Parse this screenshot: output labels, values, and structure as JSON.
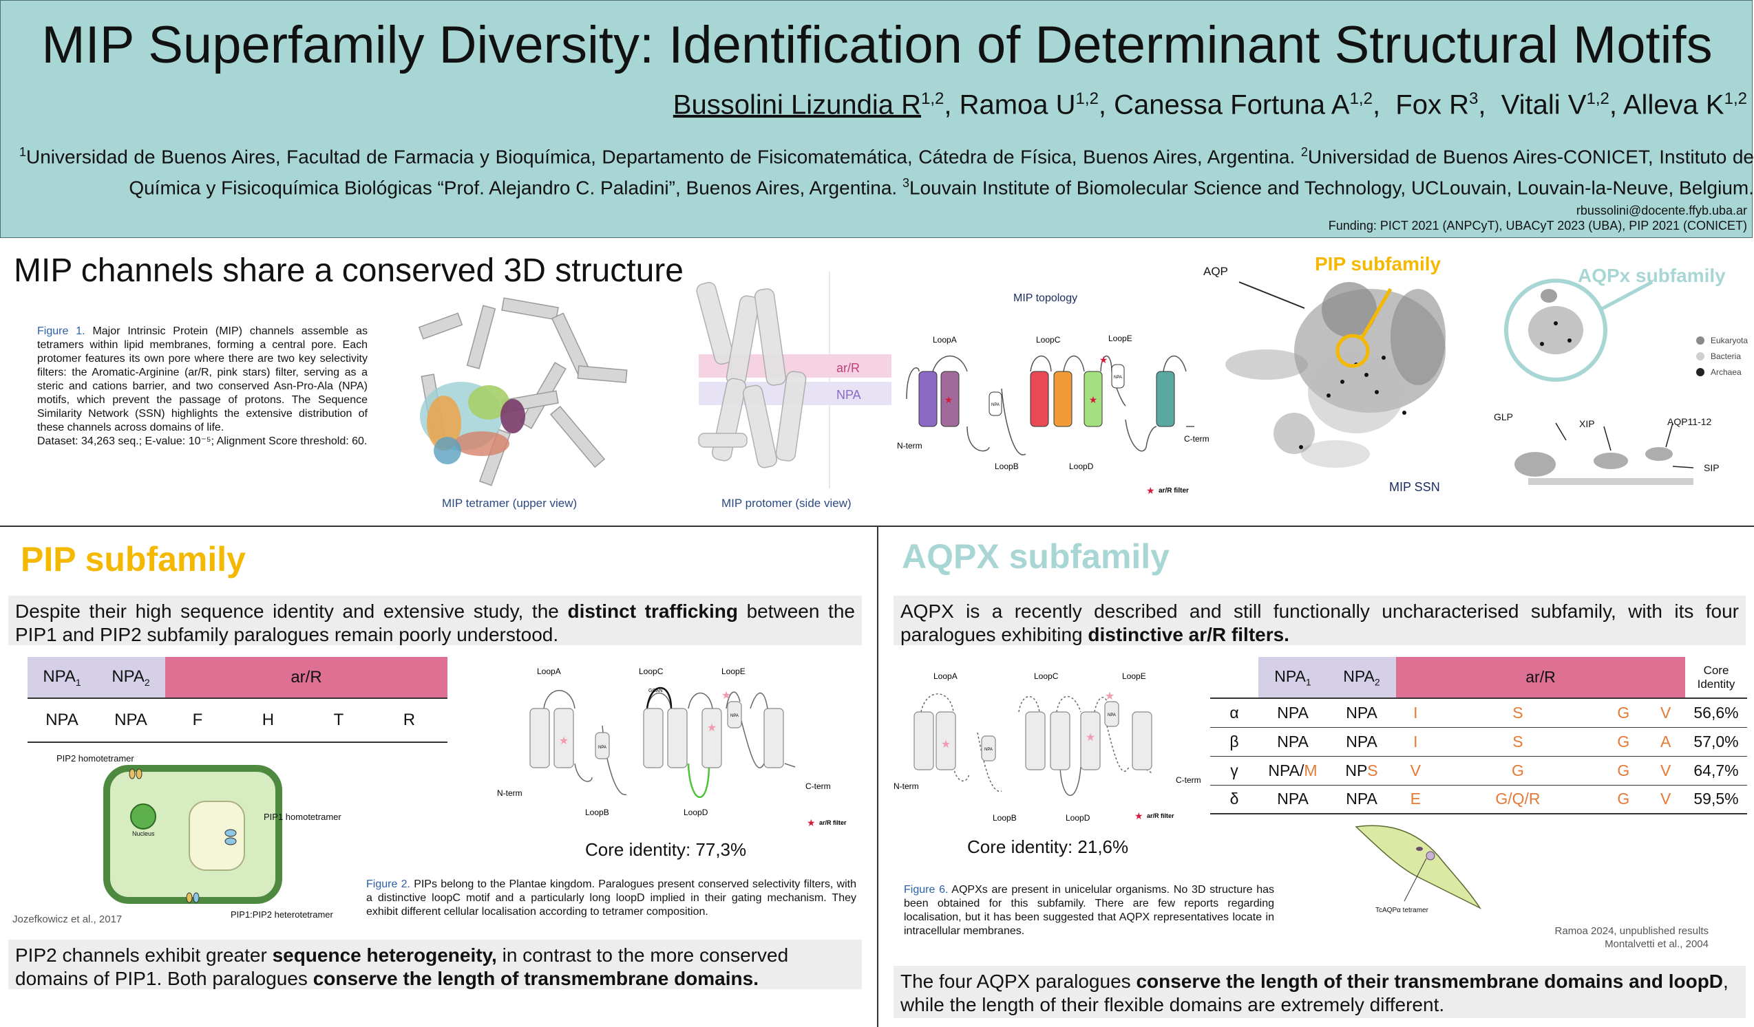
{
  "header": {
    "title": "MIP Superfamily Diversity: Identification of Determinant Structural Motifs",
    "authors": [
      {
        "name": "Bussolini Lizundia R",
        "sup": "1,2"
      },
      {
        "name": "Ramoa U",
        "sup": "1,2"
      },
      {
        "name": "Canessa Fortuna A",
        "sup": "1,2"
      },
      {
        "name": "Fox R",
        "sup": "3"
      },
      {
        "name": "Vitali V",
        "sup": "1,2"
      },
      {
        "name": "Alleva K",
        "sup": "1,2"
      }
    ],
    "aff1_sup": "1",
    "aff1": "Universidad de Buenos Aires, Facultad de Farmacia y Bioquímica, Departamento de Fisicomatemática, Cátedra de Física, Buenos Aires, Argentina.",
    "aff2_sup": "2",
    "aff2": "Universidad de Buenos Aires-CONICET, Instituto de Química y Fisicoquímica Biológicas “Prof. Alejandro C. Paladini”, Buenos Aires, Argentina.",
    "aff3_sup": "3",
    "aff3": "Louvain Institute of Biomolecular Science and Technology, UCLouvain, Louvain-la-Neuve, Belgium.",
    "email": "rbussolini@docente.ffyb.uba.ar",
    "funding": "Funding: PICT 2021 (ANPCyT), UBACyT 2023 (UBA), PIP 2021 (CONICET)"
  },
  "section1": {
    "title": "MIP channels share a conserved 3D structure",
    "fig1_label": "Figure 1.",
    "fig1_text": "Major Intrinsic Protein (MIP) channels assemble as tetramers within lipid membranes, forming a central pore. Each protomer features its own pore where there are two key selectivity filters: the Aromatic-Arginine (ar/R, pink stars) filter, serving as a steric and cations barrier, and two conserved Asn-Pro-Ala (NPA) motifs, which prevent the passage of protons. The Sequence Similarity Network (SSN) highlights the extensive distribution of these channels across domains of life.",
    "fig1_dataset": "Dataset: 34,263 seq.; E-value: 10⁻⁵; Alignment Score threshold: 60.",
    "tetramer_caption": "MIP  tetramer (upper view)",
    "protomer_caption": "MIP protomer (side view)",
    "protomer_arr": "ar/R",
    "protomer_npa": "NPA",
    "topology_title": "MIP topology",
    "topology": {
      "loopA": "LoopA",
      "loopB": "LoopB",
      "loopC": "LoopC",
      "loopD": "LoopD",
      "loopE": "LoopE",
      "nterm": "N-term",
      "cterm": "C-term",
      "npa": "NPA",
      "filter": "ar/R filter"
    },
    "ssn": {
      "aqp": "AQP",
      "pip": "PIP subfamily",
      "aqpx": "AQPx subfamily",
      "label": "MIP SSN",
      "glp": "GLP",
      "xip": "XIP",
      "aqp1112": "AQP11-12",
      "sip": "SIP",
      "legend": [
        "Eukaryota",
        "Bacteria",
        "Archaea"
      ]
    }
  },
  "pip": {
    "title": "PIP subfamily",
    "intro_a": "Despite their high sequence identity and extensive study, the",
    "intro_b": "distinct trafficking",
    "intro_c": "between the PIP1 and PIP2 subfamily paralogues remain poorly understood.",
    "table_head": {
      "npa1": "NPA",
      "npa2": "NPA",
      "sub1": "1",
      "sub2": "2",
      "arr": "ar/R"
    },
    "table_row": [
      "NPA",
      "NPA",
      "F",
      "H",
      "T",
      "R"
    ],
    "cell_labels": {
      "pip2_homo": "PIP2 homotetramer",
      "nucleus": "Nucleus",
      "pip1_homo": "PIP1 homotetramer",
      "hetero": "PIP1:PIP2 heterotetramer"
    },
    "cell_credit": "Jozefkowicz et al., 2017",
    "topology": {
      "loopA": "LoopA",
      "loopB": "LoopB",
      "loopC": "LoopC",
      "loopD": "LoopD",
      "loopE": "LoopE",
      "nterm": "N-term",
      "cterm": "C-term",
      "npa": "NPA",
      "ggan": "GGAN",
      "filter": "ar/R filter"
    },
    "core_identity": "Core identity: 77,3%",
    "fig2_label": "Figure 2.",
    "fig2_text": "PIPs belong to the Plantae kingdom. Paralogues present conserved selectivity filters, with a distinctive loopC motif and a particularly long loopD implied in their gating mechanism. They exhibit different cellular localisation according to tetramer composition.",
    "concl_a": "PIP2 channels exhibit greater",
    "concl_b": "sequence heterogeneity,",
    "concl_c": "in contrast to the more conserved domains of PIP1. Both paralogues",
    "concl_d": "conserve the length of transmembrane domains."
  },
  "aqpx": {
    "title": "AQPX subfamily",
    "intro_a": "AQPX is a recently described and still functionally uncharacterised subfamily, with its four paralogues exhibiting",
    "intro_b": "distinctive ar/R filters.",
    "topology": {
      "loopA": "LoopA",
      "loopB": "LoopB",
      "loopC": "LoopC",
      "loopD": "LoopD",
      "loopE": "LoopE",
      "nterm": "N-term",
      "cterm": "C-term",
      "npa": "NPA",
      "filter": "ar/R filter"
    },
    "core_identity": "Core identity: 21,6%",
    "table_head": {
      "npa1": "NPA",
      "npa2": "NPA",
      "sub1": "1",
      "sub2": "2",
      "arr": "ar/R",
      "core": "Core Identity"
    },
    "rows": [
      {
        "g": "α",
        "n1": "NPA",
        "n1x": "",
        "n2": "NPA",
        "n2x": "",
        "r1": "I",
        "r2": "S",
        "r3": "G",
        "r4": "V",
        "core": "56,6%"
      },
      {
        "g": "β",
        "n1": "NPA",
        "n1x": "",
        "n2": "NPA",
        "n2x": "",
        "r1": "I",
        "r2": "S",
        "r3": "G",
        "r4": "A",
        "core": "57,0%"
      },
      {
        "g": "γ",
        "n1": "NPA/",
        "n1x": "M",
        "n2": "NP",
        "n2x": "S",
        "r1": "V",
        "r2": "G",
        "r3": "G",
        "r4": "V",
        "core": "64,7%"
      },
      {
        "g": "δ",
        "n1": "NPA",
        "n1x": "",
        "n2": "NPA",
        "n2x": "",
        "r1": "E",
        "r2": "G/Q/R",
        "r3": "G",
        "r4": "V",
        "core": "59,5%"
      }
    ],
    "tc_label": "TcAQPα tetramer",
    "credit1": "Ramoa 2024, unpublished results",
    "credit2": "Montalvetti et al., 2004",
    "fig6_label": "Figure 6.",
    "fig6_text": "AQPXs are present in unicelular organisms. No 3D structure has been obtained for this subfamily. There are few reports regarding localisation, but it has been suggested that AQPX representatives locate in intracellular membranes.",
    "concl_a": "The four AQPX paralogues",
    "concl_b": "conserve the length of their transmembrane domains and loopD",
    "concl_c": ", while the length of their flexible domains are extremely different."
  },
  "colors": {
    "header_bg": "#a8d6d5",
    "pip_title": "#f5b800",
    "aqpx_title": "#a8d6d5",
    "npa_cell": "#d5cfe8",
    "arr_cell": "#dd7093",
    "residue": "#e57a37",
    "fig_label": "#2b5fa6"
  }
}
